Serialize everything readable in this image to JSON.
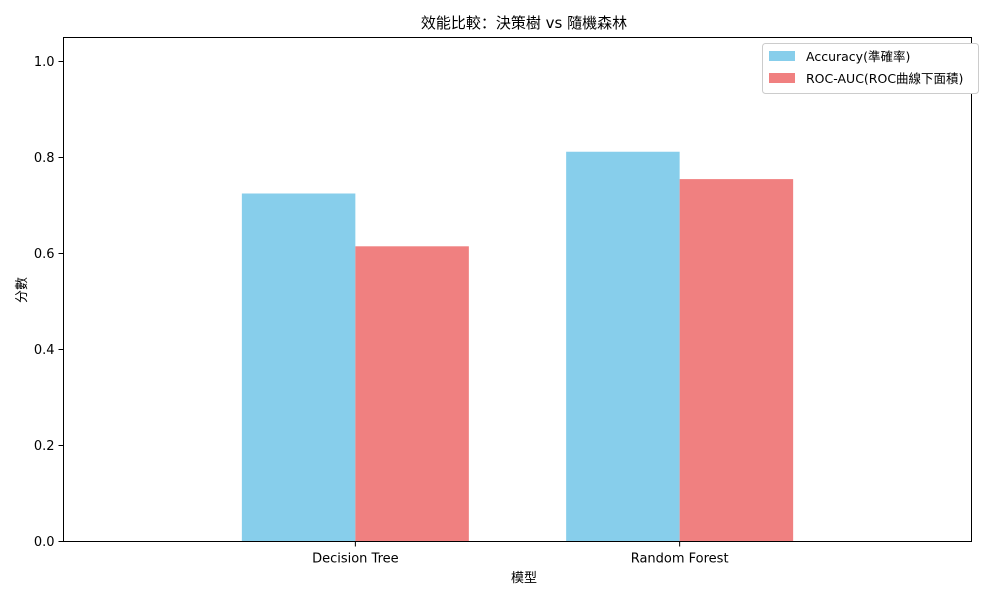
{
  "chart_data": {
    "type": "bar",
    "title": "效能比較：決策樹 vs 隨機森林",
    "xlabel": "模型",
    "ylabel": "分數",
    "categories": [
      "Decision Tree",
      "Random Forest"
    ],
    "series": [
      {
        "name": "Accuracy(準確率)",
        "color": "#87CEEB",
        "values": [
          0.725,
          0.812
        ]
      },
      {
        "name": "ROC-AUC(ROC曲線下面積)",
        "color": "#F08080",
        "values": [
          0.615,
          0.755
        ]
      }
    ],
    "ylim": [
      0,
      1.05
    ],
    "yticks": [
      "0.0",
      "0.2",
      "0.4",
      "0.6",
      "0.8",
      "1.0"
    ],
    "grid": false,
    "legend_position": "top-right"
  }
}
